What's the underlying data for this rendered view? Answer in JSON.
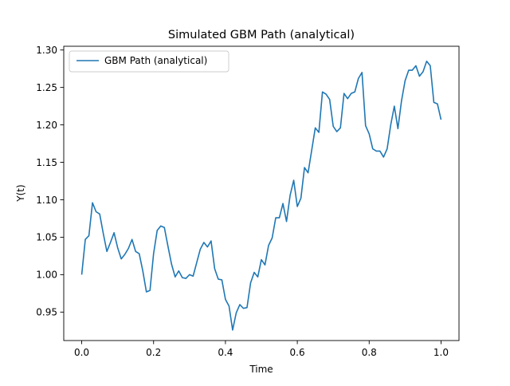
{
  "chart_data": {
    "type": "line",
    "title": "Simulated GBM Path (analytical)",
    "xlabel": "Time",
    "ylabel": "Y(t)",
    "xlim": [
      -0.05,
      1.05
    ],
    "ylim": [
      0.912,
      1.305
    ],
    "xticks": [
      0.0,
      0.2,
      0.4,
      0.6,
      0.8,
      1.0
    ],
    "xtick_labels": [
      "0.0",
      "0.2",
      "0.4",
      "0.6",
      "0.8",
      "1.0"
    ],
    "yticks": [
      0.95,
      1.0,
      1.05,
      1.1,
      1.15,
      1.2,
      1.25,
      1.3
    ],
    "ytick_labels": [
      "0.95",
      "1.00",
      "1.05",
      "1.10",
      "1.15",
      "1.20",
      "1.25",
      "1.30"
    ],
    "grid": false,
    "legend_position": "top-left",
    "colors": {
      "series": "#1f77b4",
      "axes": "#000000",
      "background": "#ffffff"
    },
    "series": [
      {
        "name": "GBM Path (analytical)",
        "x": [
          0.0,
          0.01,
          0.02,
          0.03,
          0.04,
          0.05,
          0.06,
          0.07,
          0.08,
          0.09,
          0.1,
          0.11,
          0.12,
          0.13,
          0.14,
          0.15,
          0.16,
          0.17,
          0.18,
          0.19,
          0.2,
          0.21,
          0.22,
          0.23,
          0.24,
          0.25,
          0.26,
          0.27,
          0.28,
          0.29,
          0.3,
          0.31,
          0.32,
          0.33,
          0.34,
          0.35,
          0.36,
          0.37,
          0.38,
          0.39,
          0.4,
          0.41,
          0.42,
          0.43,
          0.44,
          0.45,
          0.46,
          0.47,
          0.48,
          0.49,
          0.5,
          0.51,
          0.52,
          0.53,
          0.54,
          0.55,
          0.56,
          0.57,
          0.58,
          0.59,
          0.6,
          0.61,
          0.62,
          0.63,
          0.64,
          0.65,
          0.66,
          0.67,
          0.68,
          0.69,
          0.7,
          0.71,
          0.72,
          0.73,
          0.74,
          0.75,
          0.76,
          0.77,
          0.78,
          0.79,
          0.8,
          0.81,
          0.82,
          0.83,
          0.84,
          0.85,
          0.86,
          0.87,
          0.88,
          0.89,
          0.9,
          0.91,
          0.92,
          0.93,
          0.94,
          0.95,
          0.96,
          0.97,
          0.98,
          0.99,
          1.0
        ],
        "values": [
          1.0,
          1.047,
          1.052,
          1.096,
          1.084,
          1.081,
          1.055,
          1.031,
          1.043,
          1.056,
          1.036,
          1.021,
          1.027,
          1.035,
          1.047,
          1.031,
          1.028,
          1.005,
          0.977,
          0.979,
          1.028,
          1.059,
          1.065,
          1.063,
          1.038,
          1.014,
          0.997,
          1.005,
          0.996,
          0.995,
          1.0,
          0.998,
          1.016,
          1.034,
          1.043,
          1.037,
          1.045,
          1.008,
          0.994,
          0.993,
          0.967,
          0.958,
          0.926,
          0.949,
          0.96,
          0.955,
          0.956,
          0.989,
          1.003,
          0.997,
          1.02,
          1.013,
          1.039,
          1.049,
          1.076,
          1.076,
          1.095,
          1.071,
          1.106,
          1.126,
          1.091,
          1.102,
          1.143,
          1.136,
          1.166,
          1.196,
          1.19,
          1.244,
          1.241,
          1.234,
          1.198,
          1.191,
          1.196,
          1.242,
          1.235,
          1.242,
          1.244,
          1.262,
          1.27,
          1.199,
          1.188,
          1.168,
          1.165,
          1.165,
          1.157,
          1.168,
          1.2,
          1.225,
          1.195,
          1.232,
          1.259,
          1.273,
          1.273,
          1.279,
          1.265,
          1.271,
          1.285,
          1.279,
          1.23,
          1.228,
          1.207
        ]
      }
    ]
  }
}
